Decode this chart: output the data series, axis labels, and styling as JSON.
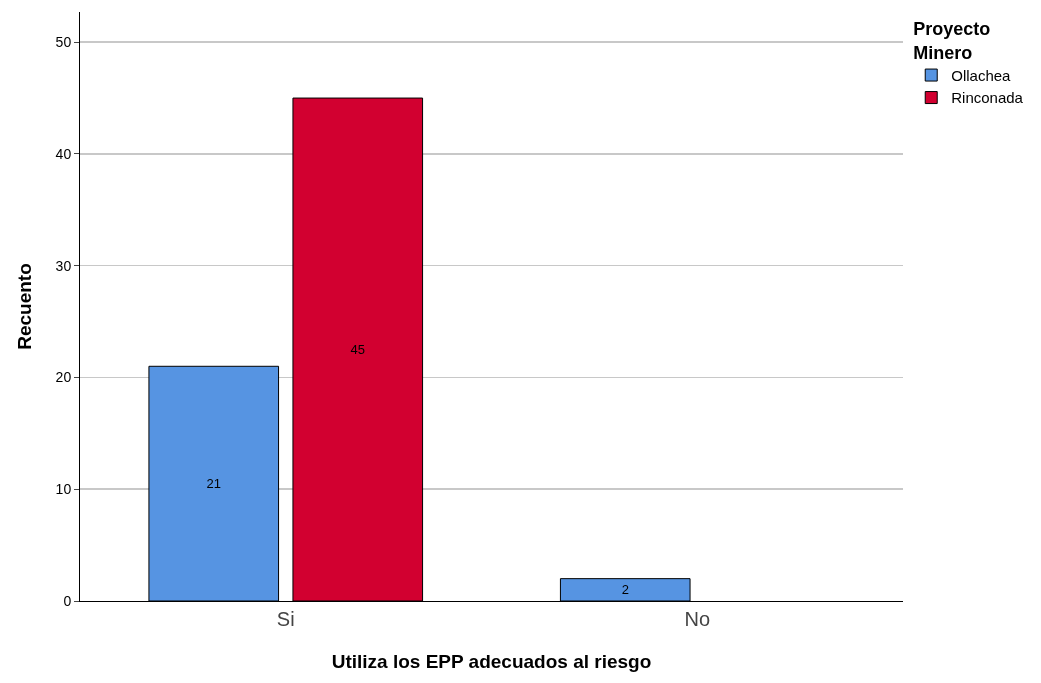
{
  "chart_data": {
    "type": "bar",
    "xlabel": "Utiliza los EPP adecuados al riesgo",
    "ylabel": "Recuento",
    "legend_title": "Proyecto Minero",
    "categories": [
      "Si",
      "No"
    ],
    "series": [
      {
        "name": "Ollachea",
        "color": "#5694e2",
        "values": [
          21,
          2
        ]
      },
      {
        "name": "Rinconada",
        "color": "#d20030",
        "values": [
          45,
          null
        ]
      }
    ],
    "ylim": [
      0,
      52.7
    ],
    "yticks": [
      0,
      10,
      20,
      30,
      40,
      50
    ],
    "grid": "y",
    "legend": "top right",
    "data_labels": true
  }
}
